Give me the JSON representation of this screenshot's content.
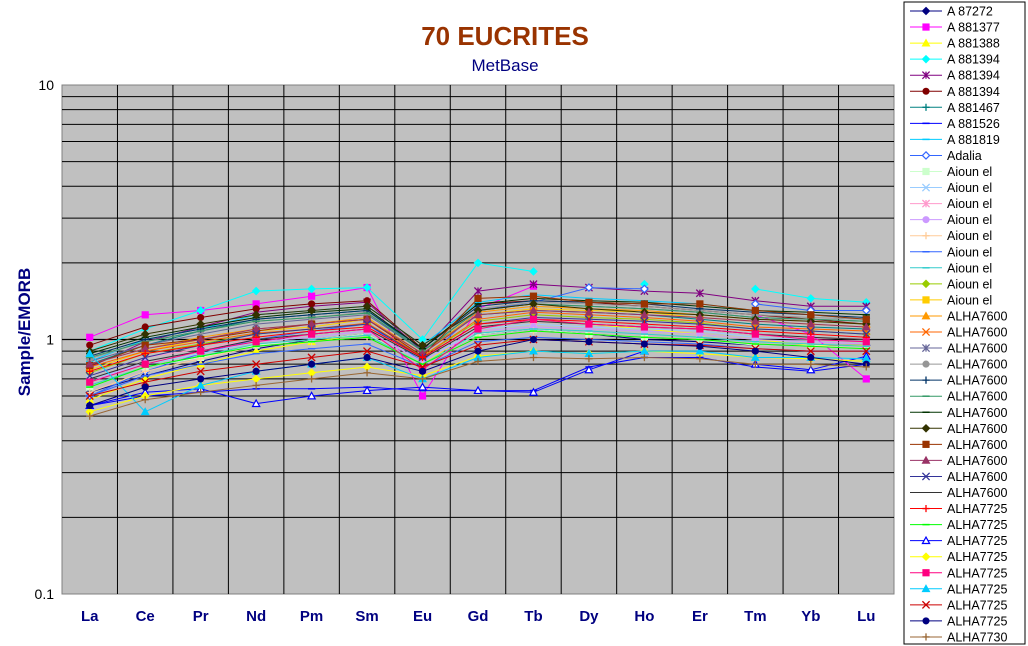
{
  "chart_data": {
    "type": "line",
    "title": "70 EUCRITES",
    "subtitle": "MetBase",
    "xlabel": "",
    "ylabel": "Sample/EMORB",
    "yscale": "log",
    "ylim": [
      0.1,
      10
    ],
    "yticks": [
      "10",
      "1",
      "0.1"
    ],
    "categories": [
      "La",
      "Ce",
      "Pr",
      "Nd",
      "Pm",
      "Sm",
      "Eu",
      "Gd",
      "Tb",
      "Dy",
      "Ho",
      "Er",
      "Tm",
      "Yb",
      "Lu"
    ],
    "grid": true,
    "legend_position": "right",
    "series": [
      {
        "name": "A 87272",
        "color": "#000080",
        "marker": "diamond",
        "values": [
          0.62,
          0.72,
          0.82,
          0.92,
          1.0,
          1.05,
          0.8,
          1.05,
          1.1,
          1.05,
          1.0,
          0.98,
          0.95,
          0.95,
          0.95
        ]
      },
      {
        "name": "A 881377",
        "color": "#FF00FF",
        "marker": "square",
        "values": [
          1.02,
          1.25,
          1.3,
          1.38,
          1.48,
          1.6,
          0.6,
          1.32,
          1.62,
          null,
          1.35,
          null,
          1.25,
          1.05,
          0.7
        ]
      },
      {
        "name": "A 881388",
        "color": "#FFFF00",
        "marker": "triangle",
        "values": [
          0.58,
          0.7,
          0.8,
          0.9,
          0.98,
          1.05,
          0.8,
          1.1,
          1.2,
          1.15,
          1.1,
          1.05,
          1.0,
          0.95,
          0.95
        ]
      },
      {
        "name": "A 881394",
        "color": "#00FFFF",
        "marker": "diamond",
        "values": [
          0.9,
          1.1,
          1.3,
          1.55,
          1.58,
          1.6,
          1.0,
          2.0,
          1.85,
          null,
          1.65,
          null,
          1.58,
          1.45,
          1.4
        ]
      },
      {
        "name": "A 881394",
        "color": "#800080",
        "marker": "star",
        "values": [
          0.78,
          0.98,
          1.12,
          1.28,
          1.35,
          1.4,
          0.9,
          1.55,
          1.65,
          1.6,
          1.55,
          1.52,
          1.42,
          1.35,
          1.35
        ]
      },
      {
        "name": "A 881394",
        "color": "#800000",
        "marker": "circle",
        "values": [
          0.95,
          1.12,
          1.22,
          1.32,
          1.38,
          1.42,
          0.92,
          1.38,
          1.42,
          1.4,
          1.35,
          1.3,
          1.25,
          1.2,
          1.15
        ]
      },
      {
        "name": "A 881467",
        "color": "#008080",
        "marker": "plus",
        "values": [
          0.8,
          0.95,
          1.08,
          1.2,
          1.25,
          1.3,
          0.9,
          1.25,
          1.3,
          1.28,
          1.25,
          1.2,
          1.15,
          1.12,
          1.1
        ]
      },
      {
        "name": "A 881526",
        "color": "#0000FF",
        "marker": "dash",
        "values": [
          0.55,
          0.6,
          0.62,
          0.64,
          0.64,
          0.65,
          0.63,
          0.63,
          0.63,
          0.78,
          0.85,
          0.85,
          0.78,
          0.75,
          0.8
        ]
      },
      {
        "name": "A 881819",
        "color": "#00CCFF",
        "marker": "dash",
        "values": [
          0.82,
          1.0,
          1.1,
          1.25,
          1.3,
          1.35,
          0.95,
          1.4,
          1.5,
          1.45,
          1.42,
          1.38,
          1.3,
          1.25,
          1.2
        ]
      },
      {
        "name": "Adalia",
        "color": "#3366FF",
        "marker": "diamond-open",
        "values": [
          0.6,
          0.75,
          0.88,
          1.0,
          1.08,
          1.15,
          0.82,
          1.3,
          1.4,
          1.6,
          1.58,
          null,
          1.38,
          1.3,
          1.3
        ]
      },
      {
        "name": "Aioun el",
        "color": "#CCFFCC",
        "marker": "square",
        "values": [
          0.65,
          0.78,
          0.85,
          0.95,
          1.0,
          1.05,
          0.8,
          1.05,
          1.1,
          1.05,
          1.02,
          1.0,
          0.95,
          0.95,
          0.92
        ]
      },
      {
        "name": "Aioun el",
        "color": "#99CCFF",
        "marker": "x",
        "values": [
          0.7,
          0.8,
          0.88,
          0.98,
          1.02,
          1.08,
          0.82,
          1.1,
          1.15,
          1.12,
          1.1,
          1.08,
          1.02,
          1.0,
          0.98
        ]
      },
      {
        "name": "Aioun el",
        "color": "#FF99CC",
        "marker": "star",
        "values": [
          0.72,
          0.85,
          0.92,
          1.0,
          1.05,
          1.1,
          0.85,
          1.12,
          1.18,
          1.15,
          1.12,
          1.1,
          1.05,
          1.02,
          1.0
        ]
      },
      {
        "name": "Aioun el",
        "color": "#CC99FF",
        "marker": "circle",
        "values": [
          0.68,
          0.82,
          0.9,
          0.98,
          1.02,
          1.08,
          0.82,
          1.08,
          1.12,
          1.1,
          1.08,
          1.05,
          1.0,
          0.98,
          0.96
        ]
      },
      {
        "name": "Aioun el",
        "color": "#FFCC99",
        "marker": "plus",
        "values": [
          0.62,
          0.75,
          0.84,
          0.94,
          0.98,
          1.02,
          0.8,
          1.02,
          1.08,
          1.05,
          1.02,
          1.0,
          0.96,
          0.94,
          0.92
        ]
      },
      {
        "name": "Aioun el",
        "color": "#3366FF",
        "marker": "dash",
        "values": [
          0.6,
          0.72,
          0.8,
          0.88,
          0.92,
          0.96,
          0.78,
          0.98,
          1.02,
          1.0,
          0.98,
          0.96,
          0.92,
          0.9,
          0.9
        ]
      },
      {
        "name": "Aioun el",
        "color": "#33CCCC",
        "marker": "dash",
        "values": [
          0.66,
          0.78,
          0.86,
          0.96,
          1.0,
          1.04,
          0.8,
          1.06,
          1.1,
          1.08,
          1.05,
          1.02,
          0.98,
          0.96,
          0.94
        ]
      },
      {
        "name": "Aioun el",
        "color": "#99CC00",
        "marker": "diamond",
        "values": [
          0.74,
          0.88,
          0.96,
          1.05,
          1.1,
          1.15,
          0.86,
          1.18,
          1.25,
          1.22,
          1.2,
          1.16,
          1.1,
          1.08,
          1.05
        ]
      },
      {
        "name": "Aioun el",
        "color": "#FFCC00",
        "marker": "square",
        "values": [
          0.76,
          0.9,
          1.0,
          1.08,
          1.12,
          1.2,
          0.88,
          1.25,
          1.32,
          1.3,
          1.28,
          1.22,
          1.18,
          1.15,
          1.12
        ]
      },
      {
        "name": "ALHA7600",
        "color": "#FF9900",
        "marker": "triangle",
        "values": [
          0.8,
          0.92,
          1.02,
          1.1,
          1.15,
          1.22,
          0.88,
          1.28,
          1.35,
          1.32,
          1.3,
          1.25,
          1.2,
          1.18,
          1.15
        ]
      },
      {
        "name": "ALHA7600",
        "color": "#FF6600",
        "marker": "x",
        "values": [
          0.78,
          0.9,
          0.98,
          1.06,
          1.1,
          1.16,
          0.86,
          1.2,
          1.28,
          1.25,
          1.22,
          1.18,
          1.12,
          1.1,
          1.08
        ]
      },
      {
        "name": "ALHA7600",
        "color": "#666699",
        "marker": "star",
        "values": [
          0.82,
          0.95,
          1.05,
          1.15,
          1.2,
          1.25,
          0.9,
          1.3,
          1.38,
          1.35,
          1.32,
          1.28,
          1.22,
          1.2,
          1.18
        ]
      },
      {
        "name": "ALHA7600",
        "color": "#969696",
        "marker": "circle",
        "values": [
          0.84,
          0.98,
          1.08,
          1.18,
          1.22,
          1.28,
          0.9,
          1.32,
          1.4,
          1.38,
          1.35,
          1.3,
          1.25,
          1.22,
          1.2
        ]
      },
      {
        "name": "ALHA7600",
        "color": "#003366",
        "marker": "plus",
        "values": [
          0.86,
          1.0,
          1.1,
          1.2,
          1.25,
          1.3,
          0.92,
          1.35,
          1.42,
          1.4,
          1.38,
          1.32,
          1.28,
          1.25,
          1.22
        ]
      },
      {
        "name": "ALHA7600",
        "color": "#339966",
        "marker": "dash",
        "values": [
          0.85,
          0.98,
          1.08,
          1.18,
          1.22,
          1.27,
          0.9,
          1.3,
          1.38,
          1.35,
          1.32,
          1.28,
          1.22,
          1.2,
          1.18
        ]
      },
      {
        "name": "ALHA7600",
        "color": "#003300",
        "marker": "dash",
        "values": [
          0.88,
          1.02,
          1.12,
          1.22,
          1.28,
          1.32,
          0.92,
          1.38,
          1.45,
          1.42,
          1.4,
          1.35,
          1.3,
          1.28,
          1.25
        ]
      },
      {
        "name": "ALHA7600",
        "color": "#333300",
        "marker": "diamond",
        "values": [
          0.9,
          1.05,
          1.15,
          1.25,
          1.3,
          1.35,
          0.95,
          1.3,
          1.38,
          1.32,
          1.28,
          1.25,
          1.2,
          1.18,
          1.15
        ]
      },
      {
        "name": "ALHA7600",
        "color": "#993300",
        "marker": "square",
        "values": [
          0.79,
          0.95,
          1.0,
          1.08,
          1.15,
          1.2,
          0.86,
          1.45,
          1.48,
          1.4,
          1.38,
          1.38,
          1.3,
          1.25,
          1.2
        ]
      },
      {
        "name": "ALHA7600",
        "color": "#993366",
        "marker": "triangle",
        "values": [
          0.8,
          0.92,
          1.0,
          1.1,
          1.15,
          1.2,
          0.88,
          1.25,
          1.3,
          1.28,
          1.25,
          1.22,
          1.18,
          1.15,
          1.12
        ]
      },
      {
        "name": "ALHA7600",
        "color": "#333399",
        "marker": "x",
        "values": [
          0.72,
          0.85,
          0.95,
          1.05,
          1.1,
          1.15,
          0.85,
          1.15,
          1.22,
          1.2,
          1.18,
          1.15,
          1.1,
          1.08,
          1.05
        ]
      },
      {
        "name": "ALHA7600",
        "color": "#333333",
        "marker": "none",
        "values": [
          0.7,
          0.82,
          0.9,
          1.0,
          1.05,
          1.1,
          0.84,
          1.12,
          1.18,
          1.15,
          1.12,
          1.1,
          1.05,
          1.02,
          1.0
        ]
      },
      {
        "name": "ALHA7725",
        "color": "#FF0000",
        "marker": "plus",
        "values": [
          0.75,
          0.88,
          0.95,
          1.02,
          1.08,
          1.12,
          0.85,
          1.15,
          1.2,
          1.18,
          1.15,
          1.12,
          1.08,
          1.05,
          1.02
        ]
      },
      {
        "name": "ALHA7725",
        "color": "#00FF00",
        "marker": "dash",
        "values": [
          0.65,
          0.78,
          0.86,
          0.94,
          0.98,
          1.02,
          0.8,
          1.02,
          1.08,
          1.05,
          1.02,
          1.0,
          0.96,
          0.94,
          0.92
        ]
      },
      {
        "name": "ALHA7725",
        "color": "#0000FF",
        "marker": "triangle-open",
        "values": [
          0.55,
          0.62,
          0.64,
          0.56,
          0.6,
          0.63,
          0.65,
          0.63,
          0.62,
          0.76,
          0.9,
          null,
          0.8,
          0.76,
          0.86
        ]
      },
      {
        "name": "ALHA7725",
        "color": "#FFFF00",
        "marker": "diamond",
        "values": [
          0.52,
          0.6,
          0.66,
          0.7,
          0.74,
          0.78,
          0.72,
          0.86,
          0.9,
          0.88,
          0.9,
          0.88,
          0.85,
          0.84,
          0.82
        ]
      },
      {
        "name": "ALHA7725",
        "color": "#FF0080",
        "marker": "square",
        "values": [
          0.68,
          0.8,
          0.9,
          0.98,
          1.05,
          1.1,
          0.76,
          1.1,
          1.2,
          1.15,
          1.12,
          1.1,
          1.05,
          1.0,
          0.98
        ]
      },
      {
        "name": "ALHA7725",
        "color": "#00CCFF",
        "marker": "triangle",
        "values": [
          0.88,
          0.52,
          0.66,
          0.75,
          0.8,
          0.85,
          0.7,
          0.85,
          0.9,
          0.88,
          0.9,
          0.9,
          0.85,
          0.85,
          0.84
        ]
      },
      {
        "name": "ALHA7725",
        "color": "#CC0000",
        "marker": "x",
        "values": [
          0.6,
          0.68,
          0.75,
          0.8,
          0.85,
          0.9,
          0.78,
          0.95,
          1.0,
          0.98,
          0.96,
          0.95,
          0.92,
          0.9,
          0.9
        ]
      },
      {
        "name": "ALHA7725",
        "color": "#000080",
        "marker": "circle",
        "values": [
          0.55,
          0.65,
          0.7,
          0.75,
          0.8,
          0.85,
          0.75,
          0.9,
          1.0,
          0.98,
          0.96,
          0.94,
          0.9,
          0.85,
          0.8
        ]
      },
      {
        "name": "ALHA7730",
        "color": "#996633",
        "marker": "plus",
        "values": [
          0.5,
          0.58,
          0.62,
          0.66,
          0.7,
          0.74,
          0.7,
          0.82,
          0.85,
          0.84,
          0.85,
          0.84,
          0.8,
          0.8,
          0.78
        ]
      }
    ]
  }
}
